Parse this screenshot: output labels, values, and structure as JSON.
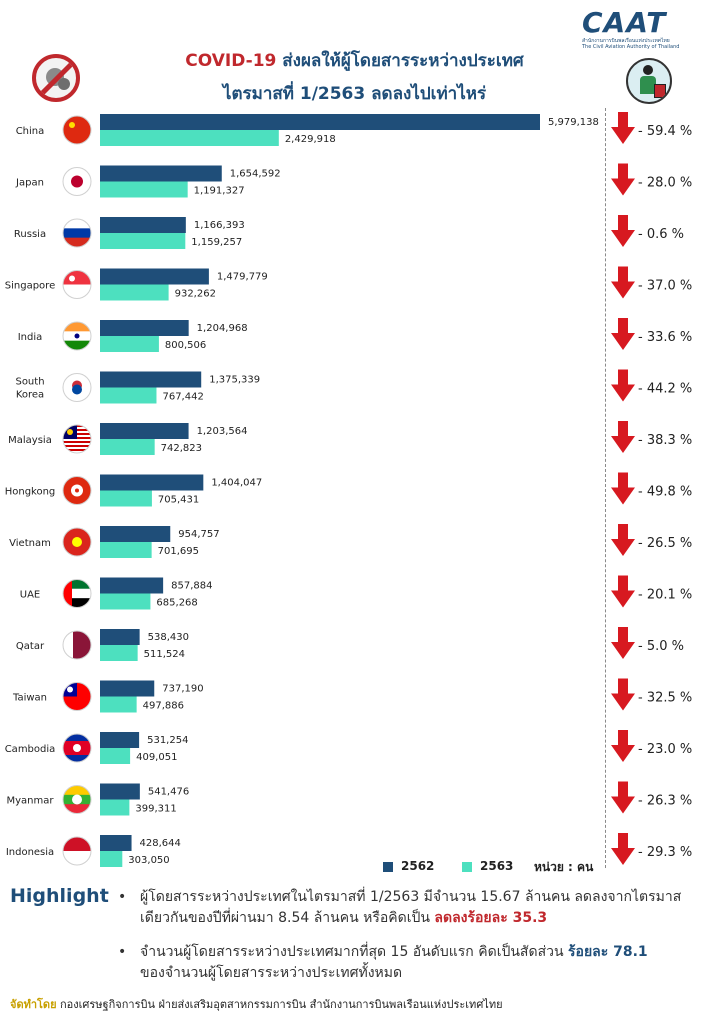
{
  "header": {
    "title_accent": "COVID-19",
    "title_rest": " ส่งผลให้ผู้โดยสารระหว่างประเทศ",
    "title_line2": "ไตรมาสที่ 1/2563 ลดลงไปเท่าไหร่",
    "logo_text": "CAAT",
    "logo_sub_th": "สำนักงานการบินพลเรือนแห่งประเทศไทย",
    "logo_sub_en": "The Civil Aviation Authority of Thailand",
    "virus_badge_icon": "no-covid-icon",
    "traveler_icon": "traveler-luggage-icon"
  },
  "colors": {
    "series_2562": "#1f4e79",
    "series_2563": "#4de0bf",
    "decline_arrow": "#d71920",
    "title_blue": "#1f4e79",
    "accent_red": "#c0282d"
  },
  "chart_data": {
    "type": "bar",
    "orientation": "horizontal",
    "categories": [
      "China",
      "Japan",
      "Russia",
      "Singapore",
      "India",
      "South Korea",
      "Malaysia",
      "Hongkong",
      "Vietnam",
      "UAE",
      "Qatar",
      "Taiwan",
      "Cambodia",
      "Myanmar",
      "Indonesia"
    ],
    "series": [
      {
        "name": "2562",
        "values": [
          5979138,
          1654592,
          1166393,
          1479779,
          1204968,
          1375339,
          1203564,
          1404047,
          954757,
          857884,
          538430,
          737190,
          531254,
          541476,
          428644
        ]
      },
      {
        "name": "2563",
        "values": [
          2429918,
          1191327,
          1159257,
          932262,
          800506,
          767442,
          742823,
          705431,
          701695,
          685268,
          511524,
          497886,
          409051,
          399311,
          303050
        ]
      }
    ],
    "value_labels": {
      "2562": [
        "5,979,138",
        "1,654,592",
        "1,166,393",
        "1,479,779",
        "1,204,968",
        "1,375,339",
        "1,203,564",
        "1,404,047",
        "954,757",
        "857,884",
        "538,430",
        "737,190",
        "531,254",
        "541,476",
        "428,644"
      ],
      "2563": [
        "2,429,918",
        "1,191,327",
        "1,159,257",
        "932,262",
        "800,506",
        "767,442",
        "742,823",
        "705,431",
        "701,695",
        "685,268",
        "511,524",
        "497,886",
        "409,051",
        "399,311",
        "303,050"
      ]
    },
    "change_labels": [
      "- 59.4 %",
      "- 28.0 %",
      "- 0.6 %",
      "- 37.0 %",
      "- 33.6 %",
      "- 44.2 %",
      "- 38.3 %",
      "- 49.8 %",
      "- 26.5 %",
      "- 20.1 %",
      "- 5.0 %",
      "- 32.5 %",
      "- 23.0 %",
      "- 26.3 %",
      "- 29.3 %"
    ],
    "flag_icons": [
      "china-flag-icon",
      "japan-flag-icon",
      "russia-flag-icon",
      "singapore-flag-icon",
      "india-flag-icon",
      "south-korea-flag-icon",
      "malaysia-flag-icon",
      "hongkong-flag-icon",
      "vietnam-flag-icon",
      "uae-flag-icon",
      "qatar-flag-icon",
      "taiwan-flag-icon",
      "cambodia-flag-icon",
      "myanmar-flag-icon",
      "indonesia-flag-icon"
    ],
    "change_icon": "down-arrow-icon",
    "legend_position": "bottom-right",
    "grid": false
  },
  "legend": {
    "label_2562": "2562",
    "label_2563": "2563",
    "unit": "หน่วย : คน"
  },
  "highlight": {
    "title": "Highlight",
    "bullet": "•",
    "item1_text": "ผู้โดยสารระหว่างประเทศในไตรมาสที่ 1/2563 มีจำนวน 15.67 ล้านคน ลดลงจากไตรมาสเดียวกันของปีที่ผ่านมา 8.54 ล้านคน หรือคิดเป็น",
    "item1_emphasis": "ลดลงร้อยละ 35.3",
    "item2_text_before": "จำนวนผู้โดยสารระหว่างประเทศมากที่สุด 15 อันดับแรก คิดเป็นสัดส่วน",
    "item2_emphasis": "ร้อยละ 78.1",
    "item2_text_after": "ของจำนวนผู้โดยสารระหว่างประเทศทั้งหมด"
  },
  "footer": {
    "lead": "จัดทำโดย",
    "text": "กองเศรษฐกิจการบิน ฝ่ายส่งเสริมอุตสาหกรรมการบิน สำนักงานการบินพลเรือนแห่งประเทศไทย"
  }
}
